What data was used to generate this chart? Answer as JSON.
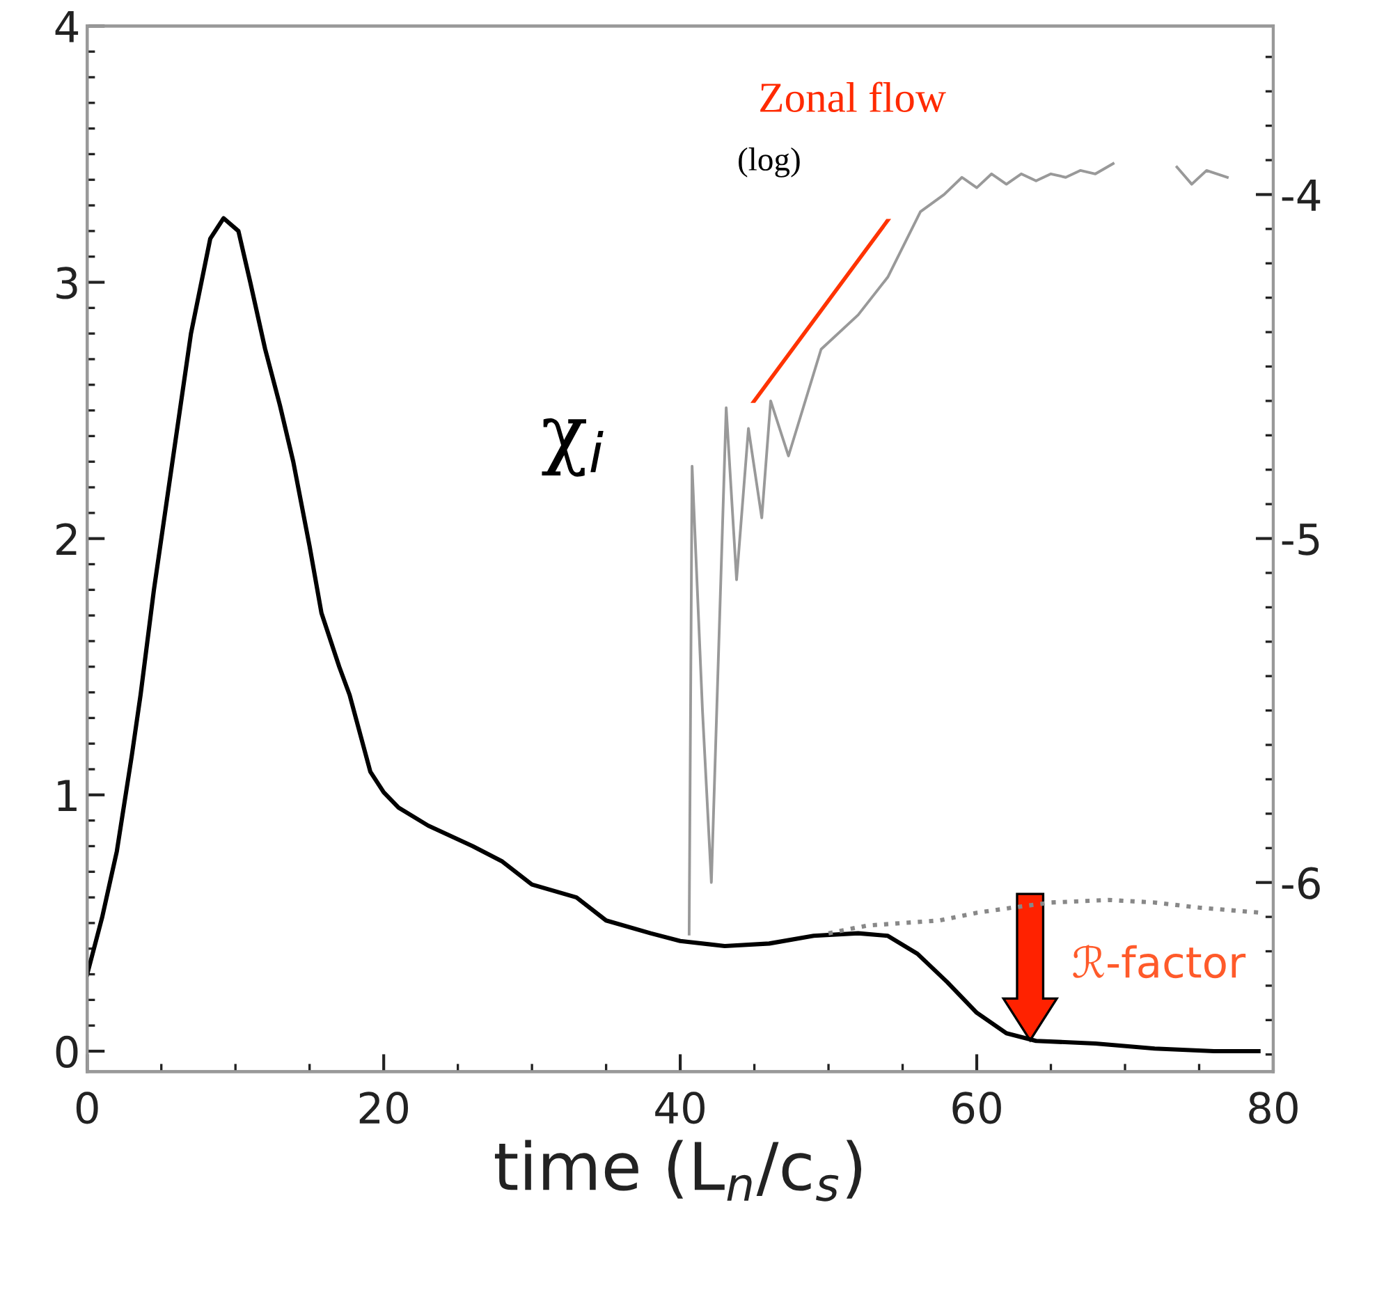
{
  "chart_data": {
    "type": "line",
    "xlabel": "time (L$_{n}$/c$_{s}$)",
    "annotations": [
      "Zonal flow",
      "(log)",
      "χ$_{i}$",
      "ℛ-factor"
    ],
    "xlim": [
      0,
      80
    ],
    "xticks": [
      0,
      20,
      40,
      60,
      80
    ],
    "ylim": [
      -0.08,
      4
    ],
    "yticks": [
      0,
      1,
      2,
      3,
      4
    ],
    "y2lim": [
      -6.55,
      -3.51
    ],
    "y2ticks": [
      -6,
      -5,
      -4
    ],
    "grid": false,
    "legend": false,
    "marker": "none",
    "series": [
      {
        "color": "#000000",
        "line_style": "solid",
        "x": [
          0,
          1,
          2,
          3,
          3.6,
          4.5,
          5.5,
          7,
          8.3,
          9.2,
          10.2,
          11,
          12,
          13,
          13.9,
          15,
          15.8,
          17,
          17.7,
          19.1,
          20,
          21,
          23,
          26,
          28,
          30,
          33,
          35,
          38,
          40,
          43,
          46,
          49,
          52,
          54,
          56,
          58,
          60,
          62,
          64,
          68,
          72,
          76,
          79
        ],
        "values": [
          0.3,
          0.52,
          0.78,
          1.15,
          1.39,
          1.8,
          2.2,
          2.8,
          3.17,
          3.25,
          3.2,
          3.0,
          2.74,
          2.52,
          2.3,
          1.97,
          1.71,
          1.5,
          1.39,
          1.09,
          1.01,
          0.95,
          0.88,
          0.8,
          0.74,
          0.65,
          0.6,
          0.51,
          0.46,
          0.43,
          0.41,
          0.42,
          0.45,
          0.46,
          0.45,
          0.38,
          0.27,
          0.15,
          0.07,
          0.04,
          0.03,
          0.01,
          0.0,
          0.0
        ]
      },
      {
        "color": "#888888",
        "line_style": "dotted",
        "x": [
          50,
          52.6,
          55,
          57.5,
          60,
          62.4,
          65,
          68.9,
          72,
          75,
          79.2
        ],
        "values": [
          0.46,
          0.49,
          0.5,
          0.51,
          0.54,
          0.56,
          0.58,
          0.59,
          0.58,
          0.56,
          0.54
        ]
      },
      {
        "color": "#999999",
        "line_style": "solid",
        "axis": "y2",
        "x": [
          40.6,
          40.8,
          41.5,
          42.1,
          43.1,
          43.8,
          44.6,
          45.5,
          46.1,
          47.3,
          49.5,
          52,
          54,
          56.2,
          57.8,
          59,
          60,
          61,
          62,
          63,
          64,
          65,
          66,
          67,
          68,
          69.2,
          71,
          73.5,
          74.5,
          75.5,
          76.9
        ],
        "values": [
          -6.15,
          -4.79,
          -5.5,
          -6.0,
          -4.62,
          -5.12,
          -4.68,
          -4.94,
          -4.6,
          -4.76,
          -4.45,
          -4.35,
          -4.24,
          -4.05,
          -4.0,
          -3.95,
          -3.98,
          -3.94,
          -3.97,
          -3.94,
          -3.96,
          -3.94,
          -3.95,
          -3.93,
          -3.94,
          -3.91,
          null,
          -3.92,
          -3.97,
          -3.93,
          -3.95
        ]
      }
    ]
  }
}
